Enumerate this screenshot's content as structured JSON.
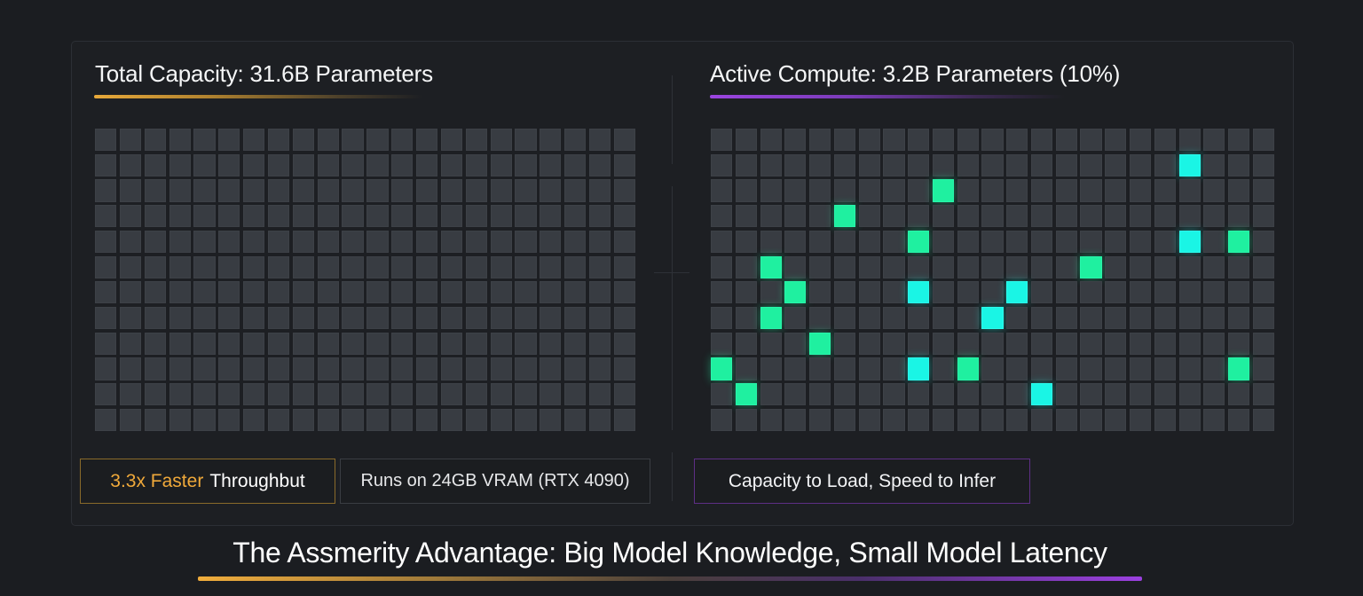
{
  "left_panel": {
    "title": "Total Capacity: 31.6B Parameters",
    "accent_color": "#e8a93a",
    "grid": {
      "rows": 12,
      "cols": 22,
      "cell_color": "#383c42",
      "active_cells": []
    }
  },
  "right_panel": {
    "title": "Active Compute: 3.2B Parameters (10%)",
    "accent_color": "#9b45e0",
    "grid": {
      "rows": 12,
      "cols": 23,
      "cell_color": "#383c42",
      "active_colors": {
        "green": "#1ff0a0",
        "cyan": "#1af5e5"
      },
      "active_cells": [
        {
          "row": 1,
          "col": 19,
          "color": "cyan"
        },
        {
          "row": 2,
          "col": 9,
          "color": "green"
        },
        {
          "row": 3,
          "col": 5,
          "color": "green"
        },
        {
          "row": 4,
          "col": 8,
          "color": "green"
        },
        {
          "row": 4,
          "col": 19,
          "color": "cyan"
        },
        {
          "row": 4,
          "col": 21,
          "color": "green"
        },
        {
          "row": 5,
          "col": 2,
          "color": "green"
        },
        {
          "row": 5,
          "col": 15,
          "color": "green"
        },
        {
          "row": 6,
          "col": 3,
          "color": "green"
        },
        {
          "row": 6,
          "col": 8,
          "color": "cyan"
        },
        {
          "row": 6,
          "col": 12,
          "color": "cyan"
        },
        {
          "row": 7,
          "col": 2,
          "color": "green"
        },
        {
          "row": 7,
          "col": 11,
          "color": "cyan"
        },
        {
          "row": 8,
          "col": 4,
          "color": "green"
        },
        {
          "row": 9,
          "col": 0,
          "color": "green"
        },
        {
          "row": 9,
          "col": 8,
          "color": "cyan"
        },
        {
          "row": 9,
          "col": 10,
          "color": "green"
        },
        {
          "row": 9,
          "col": 21,
          "color": "green"
        },
        {
          "row": 10,
          "col": 1,
          "color": "green"
        },
        {
          "row": 10,
          "col": 13,
          "color": "cyan"
        }
      ]
    }
  },
  "badges": {
    "throughput": {
      "highlight": "3.3x Faster",
      "rest": "Throughbut"
    },
    "vram": {
      "label": "Runs on 24GB VRAM (RTX 4090)"
    },
    "tagline": {
      "label": "Capacity to Load, Speed to Infer"
    }
  },
  "footer": {
    "title": "The Assmerity Advantage: Big Model Knowledge, Small Model Latency"
  }
}
